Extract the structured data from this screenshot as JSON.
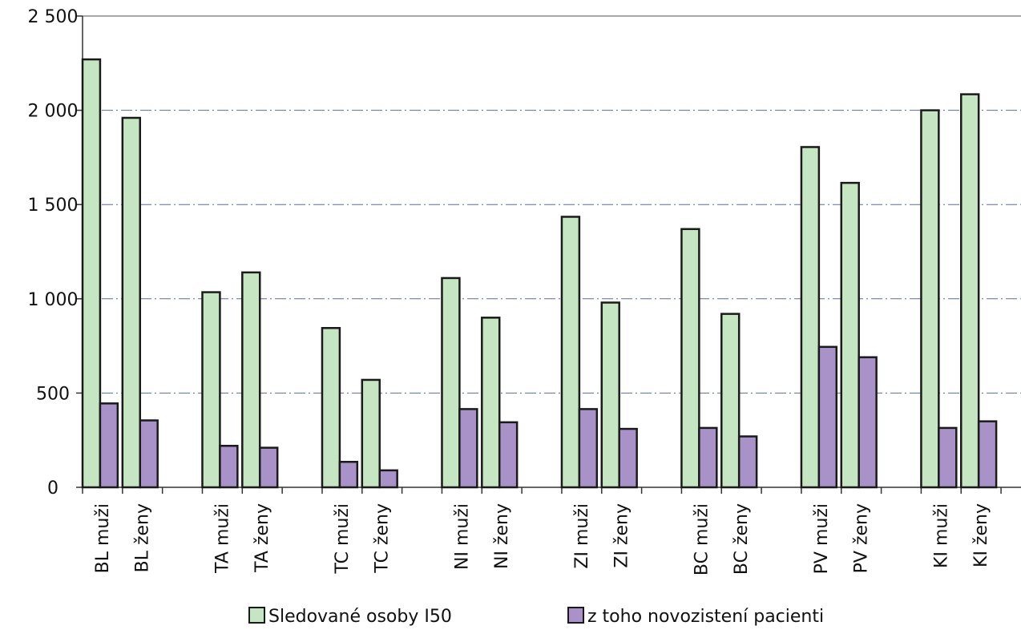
{
  "chart_data": {
    "type": "bar",
    "categories": [
      "BL muži",
      "BL ženy",
      "TA muži",
      "TA ženy",
      "TC muži",
      "TC ženy",
      "NI muži",
      "NI ženy",
      "ZI muži",
      "ZI ženy",
      "BC muži",
      "BC ženy",
      "PV muži",
      "PV ženy",
      "KI muži",
      "KI ženy"
    ],
    "series": [
      {
        "name": "Sledované osoby I50",
        "color": "#c6e5c2",
        "values": [
          2270,
          1960,
          1035,
          1140,
          845,
          570,
          1110,
          900,
          1435,
          980,
          1370,
          920,
          1805,
          1615,
          2000,
          2085
        ]
      },
      {
        "name": "z toho novozistení pacienti",
        "color": "#a892c8",
        "values": [
          445,
          355,
          220,
          210,
          135,
          90,
          415,
          345,
          415,
          310,
          315,
          270,
          745,
          690,
          315,
          350
        ]
      }
    ],
    "ylim": [
      0,
      2500
    ],
    "yticks": [
      0,
      500,
      1000,
      1500,
      2000,
      2500
    ],
    "ytick_labels": [
      "0",
      "500",
      "1 000",
      "1 500",
      "2 000",
      "2 500"
    ],
    "grid": true,
    "legend_position": "bottom",
    "title": "",
    "xlabel": "",
    "ylabel": ""
  }
}
